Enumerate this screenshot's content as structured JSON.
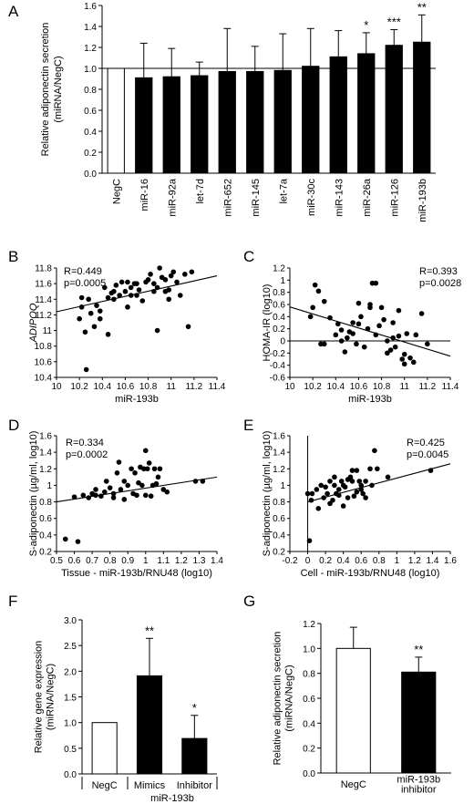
{
  "chart_data": [
    {
      "panel": "A",
      "type": "bar",
      "ylabel": "Relative adiponectin secretion\n(miRNA/NegC)",
      "ylim": [
        0,
        1.6
      ],
      "yticks": [
        "0.0",
        "0.2",
        "0.4",
        "0.6",
        "0.8",
        "1.0",
        "1.2",
        "1.4",
        "1.6"
      ],
      "categories": [
        "NegC",
        "miR-16",
        "miR-92a",
        "let-7d",
        "miR-652",
        "miR-145",
        "let-7a",
        "miR-30c",
        "miR-143",
        "miR-26a",
        "miR-126",
        "miR-193b"
      ],
      "values": [
        1.0,
        0.91,
        0.92,
        0.93,
        0.97,
        0.97,
        0.98,
        1.02,
        1.11,
        1.14,
        1.22,
        1.25
      ],
      "errors": [
        0,
        0.33,
        0.27,
        0.13,
        0.41,
        0.24,
        0.35,
        0.36,
        0.25,
        0.2,
        0.15,
        0.26
      ],
      "sig": [
        "",
        "",
        "",
        "",
        "",
        "",
        "",
        "",
        "",
        "*",
        "***",
        "**"
      ],
      "reference_line": 1.0
    },
    {
      "panel": "B",
      "type": "scatter",
      "xlabel": "miR-193b",
      "ylabel": "ADIPOQ",
      "xlim": [
        10,
        11.4
      ],
      "ylim": [
        10.4,
        11.8
      ],
      "xticks": [
        "10",
        "10.2",
        "10.4",
        "10.6",
        "10.8",
        "11",
        "11.2",
        "11.4"
      ],
      "yticks": [
        "10.4",
        "10.6",
        "10.8",
        "11",
        "11.2",
        "11.4",
        "11.6",
        "11.8"
      ],
      "R": "R=0.449",
      "p": "p=0.0005",
      "fit": [
        [
          10.0,
          11.24
        ],
        [
          11.4,
          11.7
        ]
      ],
      "x": [
        10.2,
        10.22,
        10.25,
        10.28,
        10.3,
        10.33,
        10.35,
        10.38,
        10.42,
        10.45,
        10.48,
        10.5,
        10.52,
        10.55,
        10.57,
        10.6,
        10.62,
        10.65,
        10.68,
        10.7,
        10.72,
        10.75,
        10.78,
        10.8,
        10.82,
        10.85,
        10.88,
        10.9,
        10.92,
        10.95,
        10.98,
        11.0,
        11.02,
        11.05,
        11.08,
        11.12,
        11.18,
        10.26,
        10.45,
        10.7,
        10.88,
        10.95,
        11.15,
        10.22,
        10.38,
        10.62,
        10.85,
        10.98,
        10.65,
        10.5
      ],
      "y": [
        11.15,
        11.42,
        10.98,
        11.4,
        11.22,
        11.05,
        11.32,
        11.25,
        11.55,
        11.42,
        11.48,
        11.4,
        11.58,
        11.45,
        11.62,
        11.5,
        11.3,
        11.55,
        11.6,
        11.45,
        11.52,
        11.38,
        11.62,
        11.65,
        11.72,
        11.6,
        11.55,
        11.8,
        11.68,
        11.65,
        11.52,
        11.7,
        11.75,
        11.62,
        11.45,
        11.72,
        11.75,
        10.5,
        10.95,
        11.6,
        11.0,
        11.5,
        11.05,
        11.3,
        11.15,
        11.62,
        11.5,
        11.4,
        11.45,
        11.5
      ]
    },
    {
      "panel": "C",
      "type": "scatter",
      "xlabel": "miR-193b",
      "ylabel": "HOMA-IR (log10)",
      "xlim": [
        10,
        11.4
      ],
      "ylim": [
        -0.6,
        1.2
      ],
      "xticks": [
        "10",
        "10.2",
        "10.4",
        "10.6",
        "10.8",
        "11",
        "11.2",
        "11.4"
      ],
      "yticks": [
        "-0.6",
        "-0.4",
        "-0.2",
        "0",
        "0.2",
        "0.4",
        "0.6",
        "0.8",
        "1",
        "1.2"
      ],
      "R": "R=0.393",
      "p": "p=0.0028",
      "fit": [
        [
          10.0,
          0.56
        ],
        [
          11.4,
          -0.25
        ]
      ],
      "x": [
        10.18,
        10.2,
        10.22,
        10.25,
        10.27,
        10.3,
        10.35,
        10.4,
        10.42,
        10.45,
        10.48,
        10.5,
        10.52,
        10.55,
        10.58,
        10.6,
        10.62,
        10.65,
        10.68,
        10.7,
        10.72,
        10.75,
        10.78,
        10.8,
        10.82,
        10.85,
        10.88,
        10.9,
        10.92,
        10.95,
        10.98,
        11.0,
        11.02,
        11.05,
        11.08,
        11.1,
        11.15,
        11.2,
        10.45,
        10.6,
        10.7,
        10.85,
        10.95,
        11.0,
        10.3,
        10.55,
        10.75,
        10.9
      ],
      "y": [
        0.4,
        0.55,
        0.92,
        0.82,
        -0.05,
        0.65,
        0.38,
        0.1,
        0.28,
        0.0,
        -0.18,
        0.05,
        0.15,
        0.3,
        -0.05,
        0.62,
        0.4,
        -0.1,
        0.2,
        0.55,
        0.95,
        0.1,
        0.25,
        0.55,
        0.35,
        0.0,
        -0.15,
        0.3,
        -0.1,
        0.08,
        -0.3,
        -0.22,
        0.12,
        -0.28,
        -0.35,
        0.1,
        0.45,
        -0.05,
        0.18,
        0.28,
        0.6,
        -0.2,
        0.5,
        -0.38,
        -0.05,
        0.12,
        0.95,
        0.05
      ]
    },
    {
      "panel": "D",
      "type": "scatter",
      "xlabel": "Tissue - miR-193b/RNU48 (log10)",
      "ylabel": "S-adiponectin (µg/ml, log10)",
      "xlim": [
        0.5,
        1.4
      ],
      "ylim": [
        0.2,
        1.6
      ],
      "xticks": [
        "0.5",
        "0.6",
        "0.7",
        "0.8",
        "0.9",
        "1",
        "1.1",
        "1.2",
        "1.3",
        "1.4"
      ],
      "yticks": [
        "0.2",
        "0.4",
        "0.6",
        "0.8",
        "1",
        "1.2",
        "1.4",
        "1.6"
      ],
      "R": "R=0.334",
      "p": "p=0.0002",
      "fit": [
        [
          0.5,
          0.8
        ],
        [
          1.4,
          1.1
        ]
      ],
      "x": [
        0.55,
        0.62,
        0.65,
        0.68,
        0.7,
        0.72,
        0.75,
        0.77,
        0.8,
        0.82,
        0.84,
        0.86,
        0.88,
        0.9,
        0.92,
        0.94,
        0.95,
        0.96,
        0.98,
        1.0,
        1.01,
        1.02,
        1.03,
        1.05,
        1.06,
        1.08,
        1.1,
        1.12,
        1.28,
        1.32,
        0.6,
        0.78,
        0.85,
        0.93,
        0.97,
        1.0,
        1.04,
        0.72,
        0.88,
        0.99,
        1.07,
        0.82
      ],
      "y": [
        0.35,
        0.32,
        0.88,
        0.85,
        0.9,
        0.88,
        0.87,
        0.92,
        0.97,
        0.9,
        1.15,
        0.95,
        0.83,
        1.0,
        1.2,
        1.15,
        0.88,
        1.03,
        1.0,
        1.42,
        1.2,
        1.27,
        0.87,
        1.2,
        1.02,
        1.2,
        0.95,
        0.92,
        1.05,
        1.05,
        0.86,
        1.05,
        1.28,
        0.9,
        1.22,
        0.88,
        1.0,
        0.95,
        1.05,
        1.2,
        1.1,
        0.85
      ]
    },
    {
      "panel": "E",
      "type": "scatter",
      "xlabel": "Cell - miR-193b/RNU48 (log10)",
      "ylabel": "S-adiponectin (µg/ml, log10)",
      "xlim": [
        -0.2,
        1.6
      ],
      "ylim": [
        0.2,
        1.6
      ],
      "xticks": [
        "-0.2",
        "0",
        "0.2",
        "0.4",
        "0.6",
        "0.8",
        "1",
        "1.2",
        "1.4",
        "1.6"
      ],
      "yticks": [
        "0.2",
        "0.4",
        "0.6",
        "0.8",
        "1",
        "1.2",
        "1.4",
        "1.6"
      ],
      "R": "R=0.425",
      "p": "p=0.0045",
      "fit": [
        [
          0.0,
          0.8
        ],
        [
          1.6,
          1.26
        ]
      ],
      "x": [
        0.0,
        0.02,
        0.05,
        0.1,
        0.15,
        0.18,
        0.2,
        0.22,
        0.25,
        0.28,
        0.3,
        0.32,
        0.35,
        0.38,
        0.4,
        0.42,
        0.45,
        0.48,
        0.5,
        0.52,
        0.55,
        0.58,
        0.6,
        0.62,
        0.65,
        0.7,
        0.75,
        0.78,
        0.9,
        1.38,
        0.04,
        0.25,
        0.35,
        0.45,
        0.55,
        0.65,
        0.3,
        0.5,
        0.4,
        0.6,
        0.12,
        0.72
      ],
      "y": [
        0.9,
        0.33,
        0.9,
        0.95,
        1.0,
        0.85,
        0.98,
        0.9,
        1.05,
        0.82,
        1.0,
        0.9,
        0.88,
        1.05,
        1.0,
        0.98,
        0.85,
        1.1,
        1.05,
        0.87,
        1.18,
        1.05,
        1.0,
        0.9,
        1.05,
        1.2,
        1.42,
        1.2,
        1.1,
        1.18,
        0.82,
        0.78,
        0.95,
        1.07,
        0.92,
        0.85,
        1.1,
        1.18,
        0.75,
        0.95,
        0.72,
        1.0
      ]
    },
    {
      "panel": "F",
      "type": "bar",
      "ylabel": "Relative gene expression\n(miRNA/NegC)",
      "ylim": [
        0,
        3.0
      ],
      "yticks": [
        "0.0",
        "0.5",
        "1.0",
        "1.5",
        "2.0",
        "2.5",
        "3.0"
      ],
      "categories": [
        "NegC",
        "Mimics",
        "Inhibitor"
      ],
      "group_label": "miR-193b",
      "values": [
        1.0,
        1.91,
        0.69
      ],
      "errors": [
        0,
        0.73,
        0.45
      ],
      "sig": [
        "",
        "**",
        "*"
      ]
    },
    {
      "panel": "G",
      "type": "bar",
      "ylabel": "Relative adiponectin secretion\n(miRNA/NegC)",
      "ylim": [
        0,
        1.2
      ],
      "yticks": [
        "0.0",
        "0.2",
        "0.4",
        "0.6",
        "0.8",
        "1.0",
        "1.2"
      ],
      "categories": [
        "NegC",
        "miR-193b\ninhibitor"
      ],
      "values": [
        1.0,
        0.81
      ],
      "errors": [
        0.17,
        0.12
      ],
      "sig": [
        "",
        "**"
      ]
    }
  ]
}
